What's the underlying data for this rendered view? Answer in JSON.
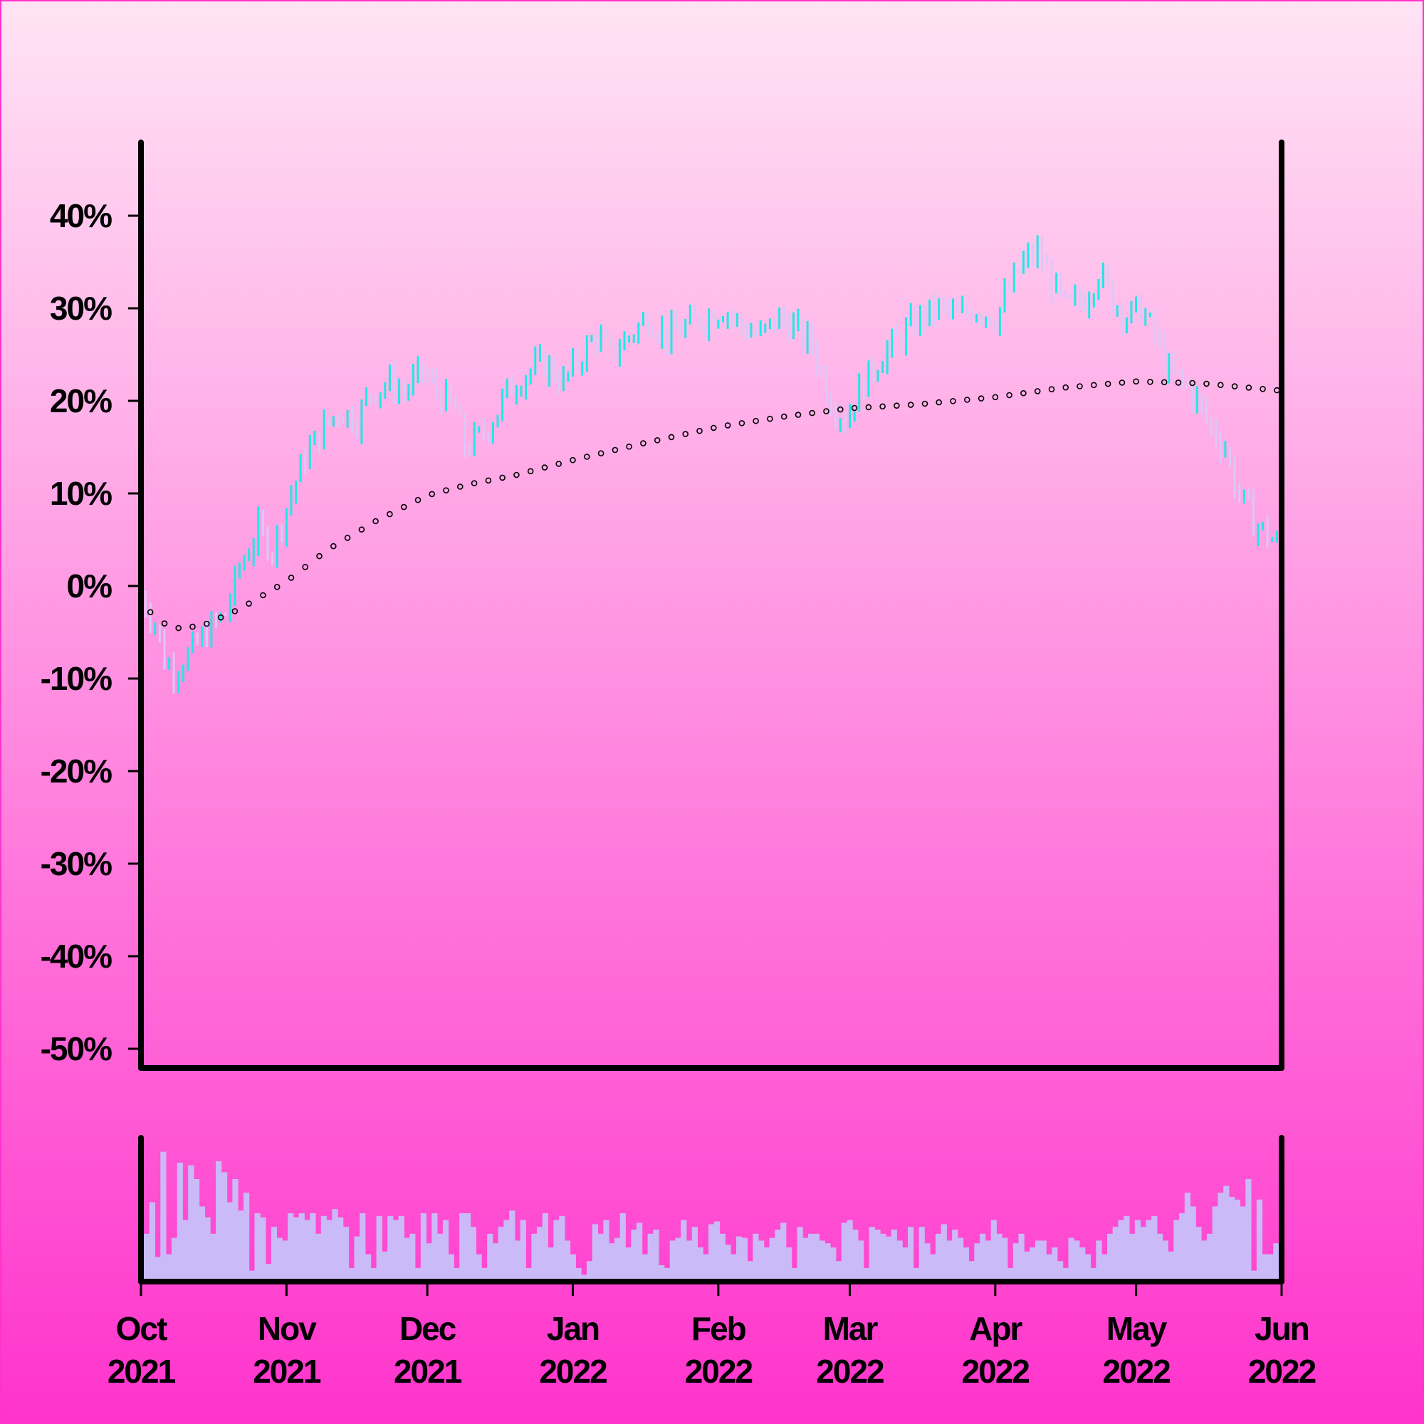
{
  "chart_data": {
    "type": "ohlc",
    "title": "",
    "xlabel": "",
    "ylabel": "",
    "y_unit": "%",
    "ylim": [
      -50,
      48
    ],
    "y_ticks": [
      40,
      30,
      20,
      10,
      0,
      -10,
      -20,
      -30,
      -40,
      -50
    ],
    "y_tick_labels": [
      "40%",
      "30%",
      "20%",
      "10%",
      "0%",
      "-10%",
      "-20%",
      "-30%",
      "-40%",
      "-50%"
    ],
    "x_range": [
      "2021-10-01",
      "2022-06-01"
    ],
    "x_ticks": [
      {
        "date": "2021-10-01",
        "month": "Oct",
        "year": "2021"
      },
      {
        "date": "2021-11-01",
        "month": "Nov",
        "year": "2021"
      },
      {
        "date": "2021-12-01",
        "month": "Dec",
        "year": "2021"
      },
      {
        "date": "2022-01-01",
        "month": "Jan",
        "year": "2022"
      },
      {
        "date": "2022-02-01",
        "month": "Feb",
        "year": "2022"
      },
      {
        "date": "2022-03-01",
        "month": "Mar",
        "year": "2022"
      },
      {
        "date": "2022-04-01",
        "month": "Apr",
        "year": "2022"
      },
      {
        "date": "2022-05-01",
        "month": "May",
        "year": "2022"
      },
      {
        "date": "2022-06-01",
        "month": "Jun",
        "year": "2022"
      }
    ],
    "price_series": {
      "name": "",
      "close_path": [
        [
          "2021-10-01",
          -1
        ],
        [
          "2021-10-04",
          -4
        ],
        [
          "2021-10-06",
          -8
        ],
        [
          "2021-10-08",
          -9
        ],
        [
          "2021-10-12",
          -7
        ],
        [
          "2021-10-15",
          -5
        ],
        [
          "2021-10-19",
          -3
        ],
        [
          "2021-10-22",
          2
        ],
        [
          "2021-10-26",
          6
        ],
        [
          "2021-10-29",
          4
        ],
        [
          "2021-11-02",
          10
        ],
        [
          "2021-11-05",
          14
        ],
        [
          "2021-11-09",
          17
        ],
        [
          "2021-11-12",
          19
        ],
        [
          "2021-11-16",
          18
        ],
        [
          "2021-11-19",
          21
        ],
        [
          "2021-11-23",
          22
        ],
        [
          "2021-11-26",
          21
        ],
        [
          "2021-11-30",
          23
        ],
        [
          "2021-12-03",
          21
        ],
        [
          "2021-12-07",
          19
        ],
        [
          "2021-12-09",
          15
        ],
        [
          "2021-12-12",
          16
        ],
        [
          "2021-12-15",
          18
        ],
        [
          "2021-12-18",
          21
        ],
        [
          "2021-12-22",
          23
        ],
        [
          "2021-12-26",
          24
        ],
        [
          "2021-12-30",
          22
        ],
        [
          "2022-01-03",
          25
        ],
        [
          "2022-01-06",
          27
        ],
        [
          "2022-01-09",
          25
        ],
        [
          "2022-01-13",
          27
        ],
        [
          "2022-01-17",
          29
        ],
        [
          "2022-01-21",
          27
        ],
        [
          "2022-01-25",
          28
        ],
        [
          "2022-01-29",
          29
        ],
        [
          "2022-02-02",
          30
        ],
        [
          "2022-02-06",
          28
        ],
        [
          "2022-02-10",
          27
        ],
        [
          "2022-02-14",
          29
        ],
        [
          "2022-02-17",
          28
        ],
        [
          "2022-02-21",
          26
        ],
        [
          "2022-02-25",
          20
        ],
        [
          "2022-02-28",
          18
        ],
        [
          "2022-03-04",
          22
        ],
        [
          "2022-03-08",
          25
        ],
        [
          "2022-03-12",
          27
        ],
        [
          "2022-03-16",
          29
        ],
        [
          "2022-03-20",
          30
        ],
        [
          "2022-03-24",
          29
        ],
        [
          "2022-03-28",
          30
        ],
        [
          "2022-04-01",
          29
        ],
        [
          "2022-04-04",
          32
        ],
        [
          "2022-04-07",
          35
        ],
        [
          "2022-04-10",
          36
        ],
        [
          "2022-04-13",
          33
        ],
        [
          "2022-04-16",
          30
        ],
        [
          "2022-04-20",
          31
        ],
        [
          "2022-04-23",
          34
        ],
        [
          "2022-04-26",
          31
        ],
        [
          "2022-04-29",
          29
        ],
        [
          "2022-05-02",
          30
        ],
        [
          "2022-05-05",
          27
        ],
        [
          "2022-05-08",
          23
        ],
        [
          "2022-05-11",
          22
        ],
        [
          "2022-05-14",
          20
        ],
        [
          "2022-05-17",
          17
        ],
        [
          "2022-05-20",
          15
        ],
        [
          "2022-05-22",
          11
        ],
        [
          "2022-05-24",
          9
        ],
        [
          "2022-05-26",
          7
        ],
        [
          "2022-05-28",
          6
        ],
        [
          "2022-05-30",
          5
        ],
        [
          "2022-06-01",
          4
        ]
      ]
    },
    "moving_average": {
      "name": "",
      "points": [
        [
          "2021-10-01",
          -1.5
        ],
        [
          "2021-10-04",
          -3.5
        ],
        [
          "2021-10-08",
          -4.6
        ],
        [
          "2021-10-14",
          -4.3
        ],
        [
          "2021-10-22",
          -2.5
        ],
        [
          "2021-11-01",
          0.5
        ],
        [
          "2021-11-10",
          4
        ],
        [
          "2021-11-20",
          7
        ],
        [
          "2021-12-01",
          9.8
        ],
        [
          "2021-12-10",
          11
        ],
        [
          "2021-12-20",
          12
        ],
        [
          "2022-01-01",
          13.6
        ],
        [
          "2022-01-15",
          15.3
        ],
        [
          "2022-02-01",
          17.2
        ],
        [
          "2022-02-15",
          18.3
        ],
        [
          "2022-03-01",
          19.2
        ],
        [
          "2022-03-15",
          19.6
        ],
        [
          "2022-04-01",
          20.4
        ],
        [
          "2022-04-15",
          21.4
        ],
        [
          "2022-05-01",
          22.1
        ],
        [
          "2022-05-15",
          21.9
        ],
        [
          "2022-06-01",
          21.1
        ]
      ]
    },
    "volume": {
      "name": "",
      "relative_levels": [
        0.35,
        0.58,
        0.18,
        0.95,
        0.2,
        0.32,
        0.87,
        0.45,
        0.85,
        0.75,
        0.55,
        0.47,
        0.35,
        0.88,
        0.8,
        0.58,
        0.75,
        0.52,
        0.65,
        0.08,
        0.5,
        0.47,
        0.13,
        0.4,
        0.32,
        0.3,
        0.5,
        0.47,
        0.5,
        0.45,
        0.5,
        0.35,
        0.48,
        0.45,
        0.53,
        0.47,
        0.4,
        0.1,
        0.33,
        0.5,
        0.2,
        0.1,
        0.48,
        0.22,
        0.48,
        0.45,
        0.48,
        0.32,
        0.35,
        0.1,
        0.5,
        0.28,
        0.5,
        0.35,
        0.45,
        0.2,
        0.1,
        0.5,
        0.5,
        0.4,
        0.2,
        0.1,
        0.35,
        0.28,
        0.4,
        0.45,
        0.52,
        0.3,
        0.45,
        0.1,
        0.35,
        0.4,
        0.5,
        0.25,
        0.45,
        0.48,
        0.3,
        0.2,
        0.1,
        0.05,
        0.15,
        0.42,
        0.35,
        0.45,
        0.28,
        0.32,
        0.5,
        0.25,
        0.38,
        0.43,
        0.2,
        0.35,
        0.38,
        0.12,
        0.1,
        0.3,
        0.32,
        0.45,
        0.3,
        0.4,
        0.25,
        0.2,
        0.42,
        0.44,
        0.35,
        0.27,
        0.2,
        0.33,
        0.32,
        0.15,
        0.35,
        0.3,
        0.25,
        0.32,
        0.38,
        0.43,
        0.25,
        0.1,
        0.4,
        0.32,
        0.35,
        0.35,
        0.3,
        0.28,
        0.25,
        0.15,
        0.43,
        0.45,
        0.38,
        0.3,
        0.1,
        0.4,
        0.38,
        0.35,
        0.33,
        0.38,
        0.3,
        0.25,
        0.4,
        0.1,
        0.4,
        0.28,
        0.2,
        0.35,
        0.42,
        0.3,
        0.38,
        0.32,
        0.25,
        0.15,
        0.28,
        0.35,
        0.3,
        0.45,
        0.35,
        0.32,
        0.1,
        0.28,
        0.35,
        0.22,
        0.25,
        0.3,
        0.3,
        0.2,
        0.25,
        0.15,
        0.1,
        0.32,
        0.3,
        0.25,
        0.2,
        0.1,
        0.3,
        0.2,
        0.35,
        0.4,
        0.45,
        0.48,
        0.35,
        0.45,
        0.4,
        0.45,
        0.48,
        0.35,
        0.3,
        0.22,
        0.45,
        0.5,
        0.65,
        0.55,
        0.4,
        0.3,
        0.35,
        0.55,
        0.65,
        0.7,
        0.62,
        0.6,
        0.55,
        0.75,
        0.08,
        0.6,
        0.2,
        0.2,
        0.28
      ]
    },
    "colors": {
      "background_top": "#ffe4f4",
      "background_bottom": "#ff33cc",
      "up_bar": "#1ee9e6",
      "down_bar": "#dcc8f6",
      "volume_bar": "#cbbaf8",
      "moving_average_marker": "#000000",
      "axis": "#000000"
    },
    "grid": false,
    "legend": "none"
  }
}
